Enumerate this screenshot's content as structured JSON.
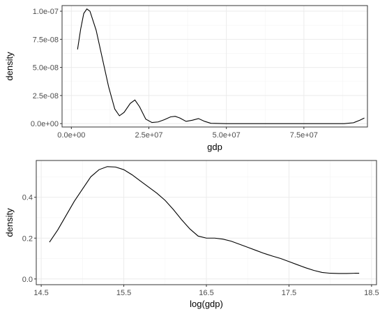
{
  "chart_data": [
    {
      "type": "line",
      "xlabel": "gdp",
      "ylabel": "density",
      "xlim": [
        -3000000,
        95500000
      ],
      "ylim": [
        -3e-09,
        1.05e-07
      ],
      "x_ticks": [
        0,
        25000000,
        50000000,
        75000000
      ],
      "x_tick_labels": [
        "0.0e+00",
        "2.5e+07",
        "5.0e+07",
        "7.5e+07"
      ],
      "y_ticks": [
        0,
        2.5e-08,
        5e-08,
        7.5e-08,
        1e-07
      ],
      "y_tick_labels": [
        "0.0e+00",
        "2.5e-08",
        "5.0e-08",
        "7.5e-08",
        "1.0e-07"
      ],
      "grid": true,
      "x": [
        2000000,
        3000000,
        4000000,
        5000000,
        6000000,
        8000000,
        10000000,
        12000000,
        14000000,
        15500000,
        17000000,
        19000000,
        20500000,
        22000000,
        24000000,
        26000000,
        28000000,
        30000000,
        32000000,
        33500000,
        35000000,
        37000000,
        39000000,
        41000000,
        43000000,
        45000000,
        50000000,
        60000000,
        70000000,
        80000000,
        88000000,
        91000000,
        93000000,
        94500000
      ],
      "y": [
        6.6e-08,
        8.4e-08,
        9.8e-08,
        1.02e-07,
        1e-07,
        8.3e-08,
        5.8e-08,
        3.3e-08,
        1.3e-08,
        7e-09,
        1e-08,
        1.8e-08,
        2.1e-08,
        1.5e-08,
        4e-09,
        1e-09,
        1.5e-09,
        3.5e-09,
        6e-09,
        6.5e-09,
        5e-09,
        2e-09,
        3e-09,
        4.5e-09,
        2e-09,
        3e-10,
        0,
        0,
        0,
        0,
        0,
        8e-10,
        3e-09,
        5e-09
      ]
    },
    {
      "type": "line",
      "xlabel": "log(gdp)",
      "ylabel": "density",
      "xlim": [
        14.44,
        18.56
      ],
      "ylim": [
        -0.028,
        0.58
      ],
      "x_ticks": [
        14.5,
        15.5,
        16.5,
        17.5,
        18.5
      ],
      "x_tick_labels": [
        "14.5",
        "15.5",
        "16.5",
        "17.5",
        "18.5"
      ],
      "y_ticks": [
        0.0,
        0.2,
        0.4
      ],
      "y_tick_labels": [
        "0.0",
        "0.2",
        "0.4"
      ],
      "grid": true,
      "x": [
        14.6,
        14.7,
        14.8,
        14.9,
        15.0,
        15.1,
        15.2,
        15.3,
        15.4,
        15.5,
        15.6,
        15.7,
        15.8,
        15.9,
        16.0,
        16.1,
        16.2,
        16.3,
        16.4,
        16.5,
        16.6,
        16.7,
        16.8,
        16.9,
        17.0,
        17.1,
        17.2,
        17.3,
        17.4,
        17.5,
        17.6,
        17.7,
        17.8,
        17.9,
        18.0,
        18.1,
        18.2,
        18.3,
        18.35
      ],
      "y": [
        0.18,
        0.24,
        0.31,
        0.38,
        0.44,
        0.5,
        0.535,
        0.55,
        0.548,
        0.535,
        0.51,
        0.48,
        0.45,
        0.42,
        0.385,
        0.34,
        0.29,
        0.245,
        0.21,
        0.2,
        0.2,
        0.195,
        0.185,
        0.17,
        0.155,
        0.14,
        0.125,
        0.112,
        0.1,
        0.085,
        0.07,
        0.055,
        0.042,
        0.032,
        0.028,
        0.027,
        0.027,
        0.028,
        0.028
      ]
    }
  ]
}
